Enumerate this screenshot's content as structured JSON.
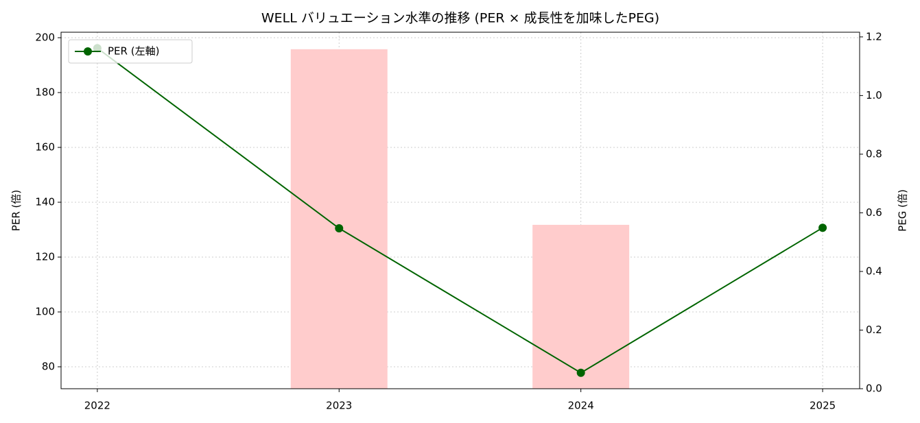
{
  "chart_data": {
    "type": "line",
    "title": "WELL バリュエーション水準の推移 (PER × 成長性を加味したPEG)",
    "ylabel": "PER (倍)",
    "y2label": "PEG (倍)",
    "x": [
      2022,
      2023,
      2024,
      2025
    ],
    "xlim": [
      2021.85,
      2025.153
    ],
    "xticks": [
      2022,
      2023,
      2024,
      2025
    ],
    "ylim": [
      72,
      202
    ],
    "yticks": [
      80,
      100,
      120,
      140,
      160,
      180,
      200
    ],
    "y2lim": [
      0,
      1.216
    ],
    "y2ticks": [
      {
        "value": 0,
        "label": "0.0"
      },
      0.2,
      0.4,
      0.6,
      0.8,
      {
        "value": 1.0,
        "label": "1.0"
      },
      1.2
    ],
    "grid": true,
    "legend": "upper left",
    "series": [
      {
        "name": "PER (左軸)",
        "type": "line",
        "color": "#006400",
        "values": [
          196.2,
          130.5,
          77.8,
          130.7
        ]
      },
      {
        "type": "bar",
        "axis": "y2",
        "color": "#ffcccc",
        "values": [
          null,
          1.158,
          0.559,
          null
        ]
      }
    ]
  }
}
